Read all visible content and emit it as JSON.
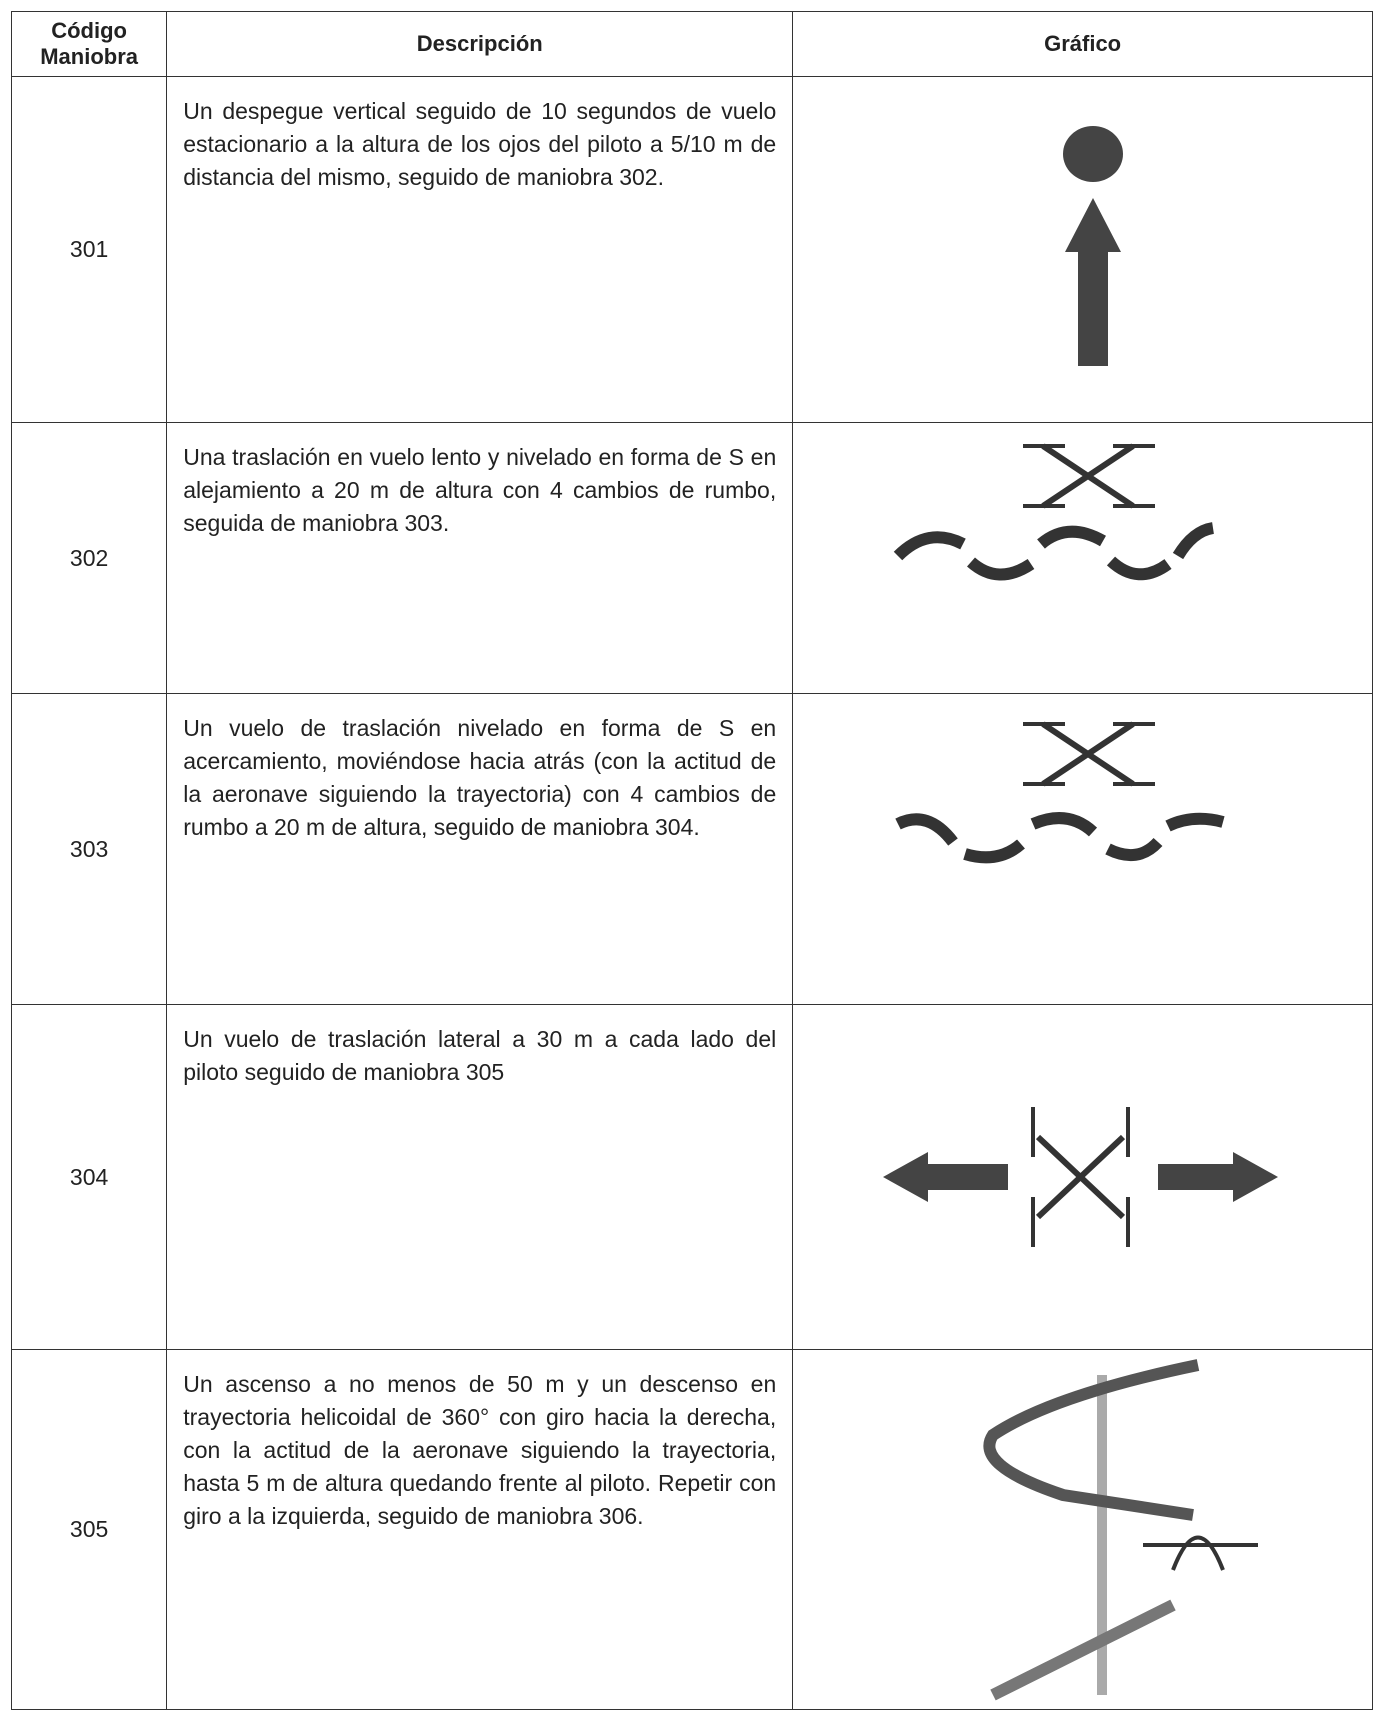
{
  "header": {
    "code": "Código\nManiobra",
    "description": "Descripción",
    "graphic": "Gráfico"
  },
  "rows": [
    {
      "code": "301",
      "description": "Un despegue vertical seguido de 10 segundos de vuelo estacionario a la altura de los ojos del piloto a 5/10 m de distancia del mismo, seguido de maniobra 302."
    },
    {
      "code": "302",
      "description": "Una traslación en vuelo lento y nivelado en forma de S en alejamiento a 20 m de altura con 4 cambios de rumbo, seguida de maniobra 303."
    },
    {
      "code": "303",
      "description": "Un vuelo de traslación nivelado en forma de S en acercamiento, moviéndose hacia atrás (con la actitud de la aeronave siguiendo la trayectoria) con 4 cambios de rumbo a 20 m de altura, seguido de maniobra 304."
    },
    {
      "code": "304",
      "description": "Un vuelo de traslación lateral a 30 m a cada lado del piloto seguido de maniobra 305"
    },
    {
      "code": "305",
      "description": "Un ascenso a no menos de 50 m y un descenso en trayectoria helicoidal de 360° con giro hacia la derecha, con la actitud de la aeronave siguiendo la trayectoria, hasta 5 m de altura quedando frente al piloto. Repetir con giro a la izquierda, seguido de maniobra 306."
    }
  ]
}
